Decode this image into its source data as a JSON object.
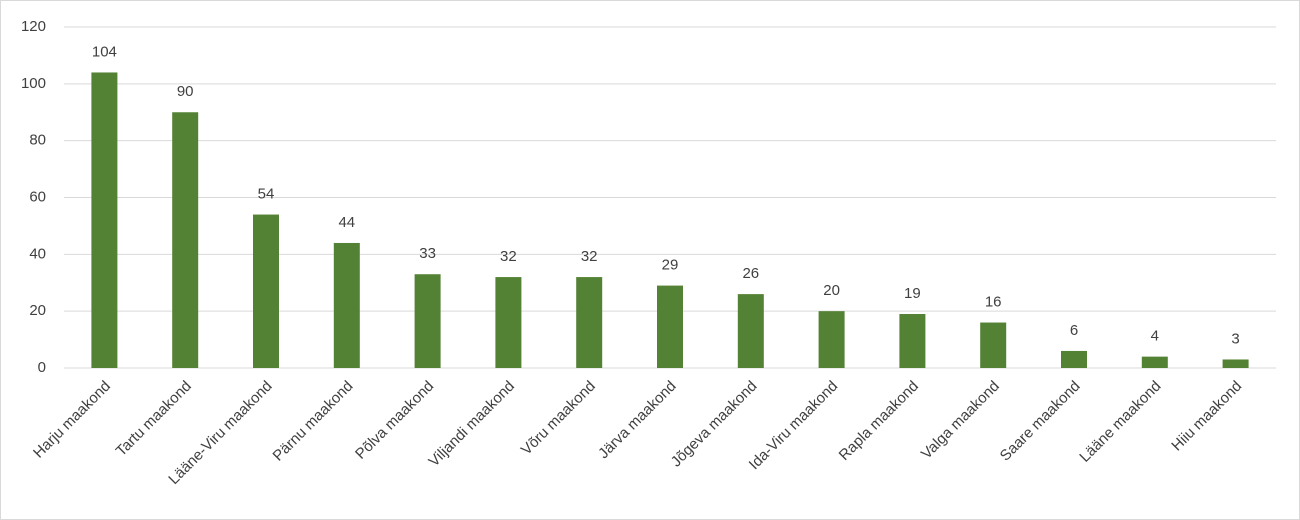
{
  "chart_data": {
    "type": "bar",
    "categories": [
      "Harju maakond",
      "Tartu maakond",
      "Lääne-Viru maakond",
      "Pärnu maakond",
      "Põlva maakond",
      "Viljandi maakond",
      "Võru maakond",
      "Järva maakond",
      "Jõgeva maakond",
      "Ida-Viru maakond",
      "Rapla maakond",
      "Valga maakond",
      "Saare maakond",
      "Lääne maakond",
      "Hiiu maakond"
    ],
    "values": [
      104,
      90,
      54,
      44,
      33,
      32,
      32,
      29,
      26,
      20,
      19,
      16,
      6,
      4,
      3
    ],
    "color": "#548235",
    "ylim": [
      0,
      120
    ],
    "yticks": [
      0,
      20,
      40,
      60,
      80,
      100,
      120
    ],
    "grid": true
  }
}
